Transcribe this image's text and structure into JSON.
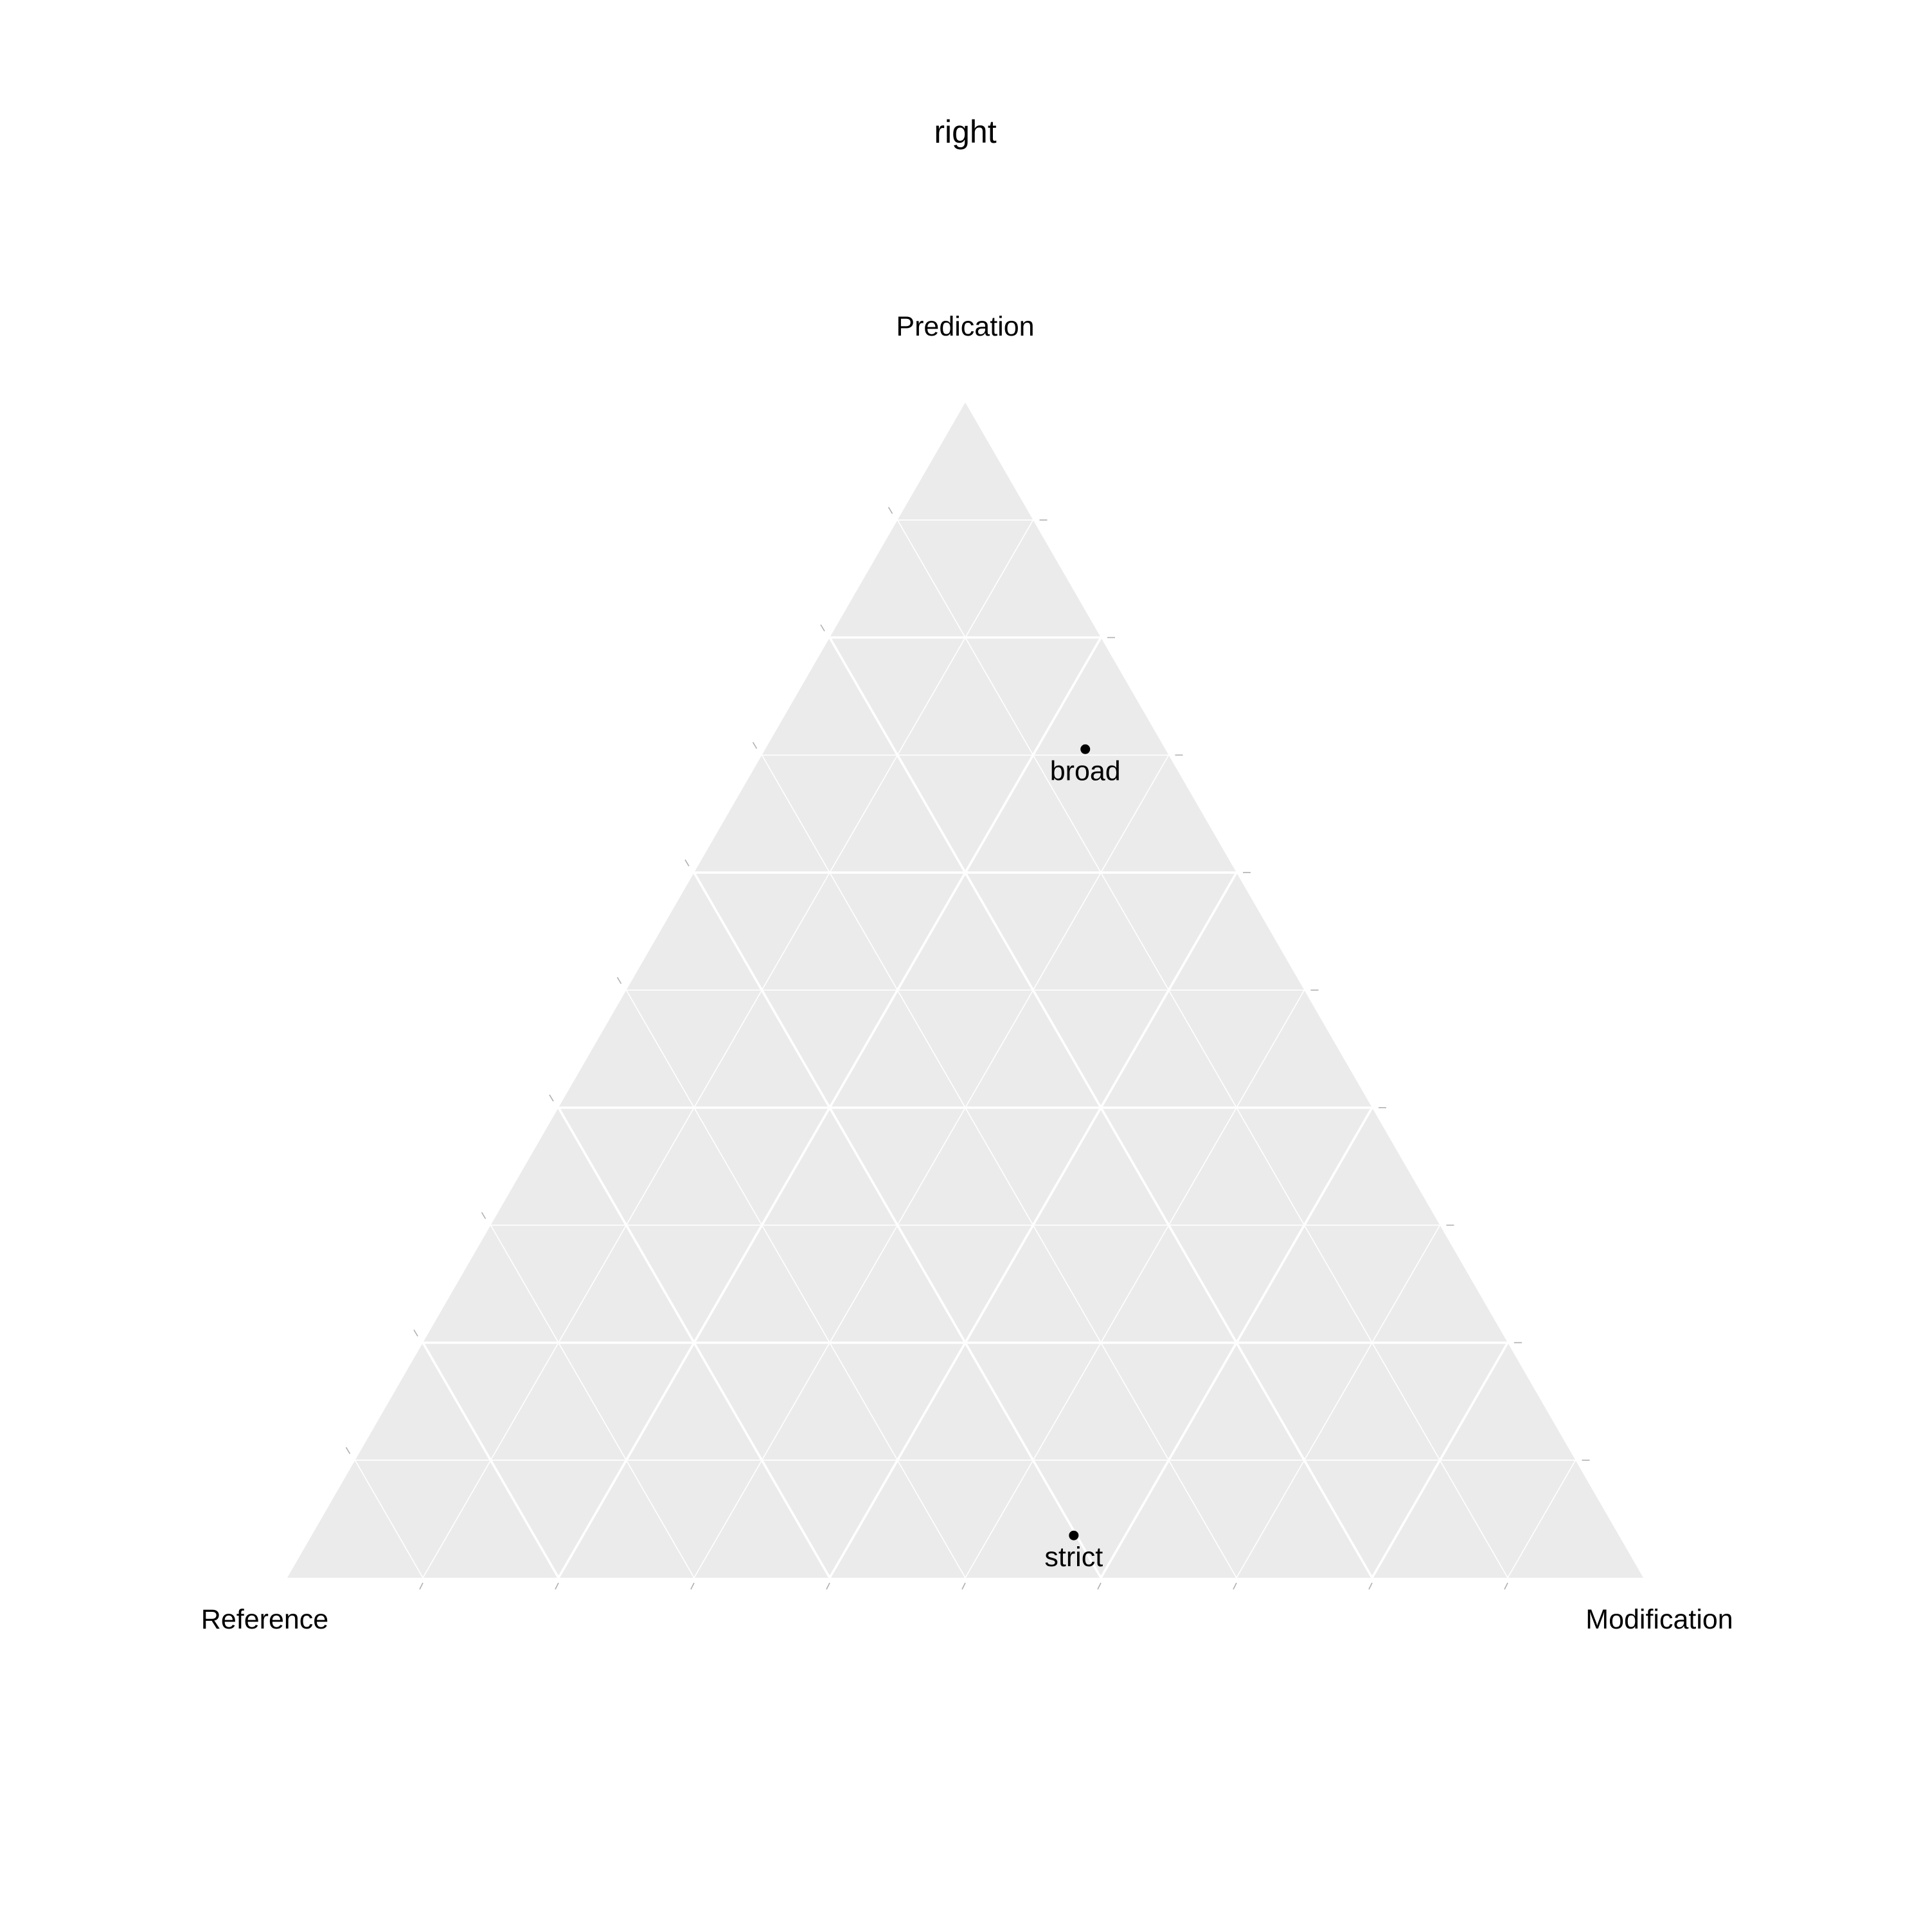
{
  "chart_data": {
    "type": "scatter",
    "subtype": "ternary",
    "title": "right",
    "axes": {
      "top": "Predication",
      "left": "Reference",
      "right": "Modification"
    },
    "grid": true,
    "major_breaks": [
      0.2,
      0.4,
      0.6,
      0.8
    ],
    "minor_breaks": [
      0.1,
      0.3,
      0.5,
      0.7,
      0.9
    ],
    "points": [
      {
        "label": "broad",
        "Predication": 0.705,
        "Reference": 0.059,
        "Modification": 0.236
      },
      {
        "label": "strict",
        "Predication": 0.036,
        "Reference": 0.402,
        "Modification": 0.562
      }
    ],
    "colors": {
      "panel": "#ebebeb",
      "grid": "#ffffff",
      "point": "#000000",
      "tick": "#b0b0b0"
    }
  }
}
